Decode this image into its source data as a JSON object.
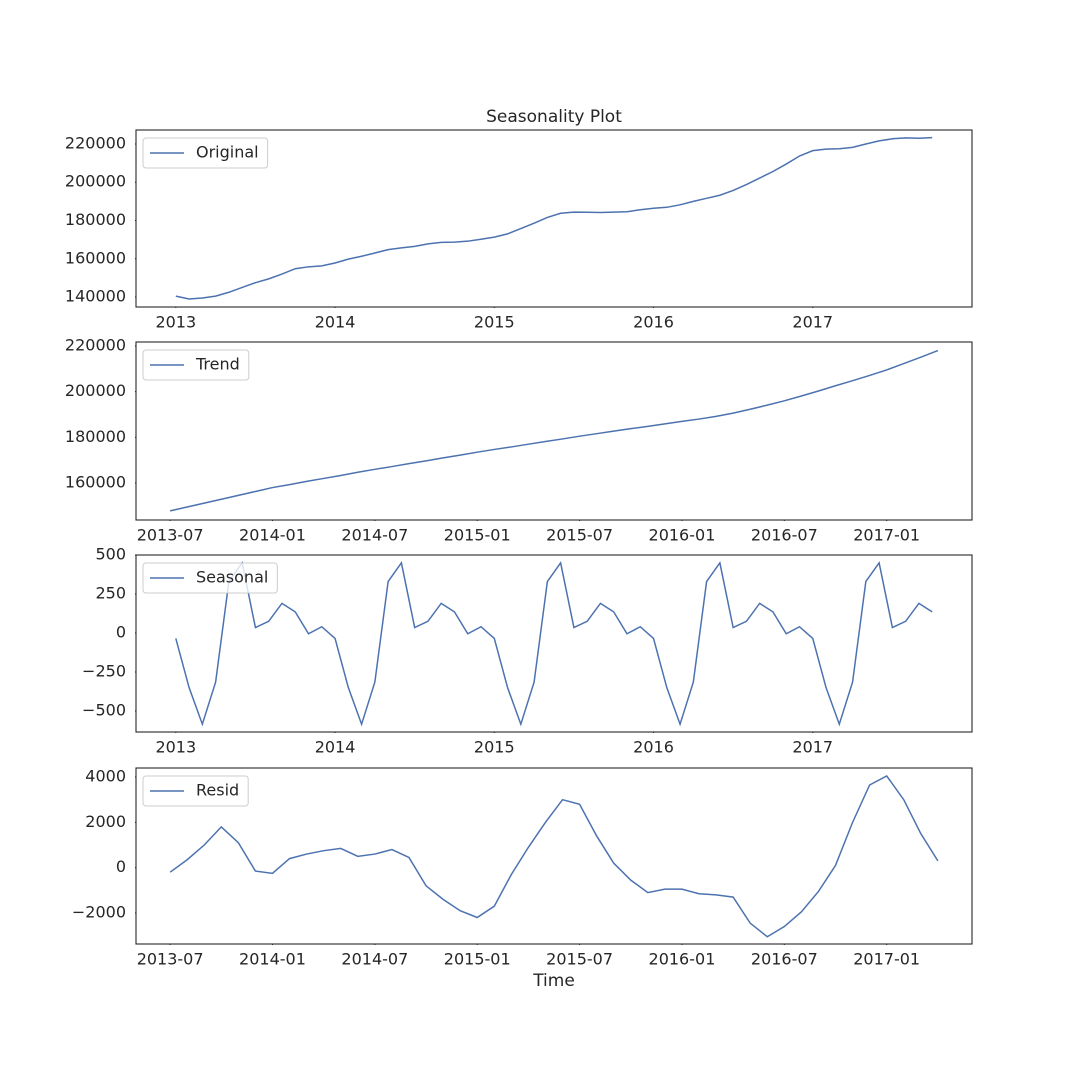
{
  "chart_data": [
    {
      "type": "line",
      "title": "Seasonality Plot",
      "legend": "upper left",
      "x": [
        "2013-01",
        "2013-02",
        "2013-03",
        "2013-04",
        "2013-05",
        "2013-06",
        "2013-07",
        "2013-08",
        "2013-09",
        "2013-10",
        "2013-11",
        "2013-12",
        "2014-01",
        "2014-02",
        "2014-03",
        "2014-04",
        "2014-05",
        "2014-06",
        "2014-07",
        "2014-08",
        "2014-09",
        "2014-10",
        "2014-11",
        "2014-12",
        "2015-01",
        "2015-02",
        "2015-03",
        "2015-04",
        "2015-05",
        "2015-06",
        "2015-07",
        "2015-08",
        "2015-09",
        "2015-10",
        "2015-11",
        "2015-12",
        "2016-01",
        "2016-02",
        "2016-03",
        "2016-04",
        "2016-05",
        "2016-06",
        "2016-07",
        "2016-08",
        "2016-09",
        "2016-10",
        "2016-11",
        "2016-12",
        "2017-01",
        "2017-02",
        "2017-03",
        "2017-04",
        "2017-05",
        "2017-06",
        "2017-07",
        "2017-08",
        "2017-09",
        "2017-10"
      ],
      "series": [
        {
          "name": "Original",
          "color": "#4c72b0",
          "values": [
            140500,
            139000,
            139500,
            140500,
            142500,
            145000,
            147500,
            149500,
            152000,
            154800,
            155800,
            156300,
            157800,
            159800,
            161300,
            163000,
            164800,
            165700,
            166500,
            167800,
            168600,
            168700,
            169200,
            170200,
            171300,
            173000,
            175800,
            178600,
            181600,
            183800,
            184400,
            184300,
            184200,
            184400,
            184600,
            185600,
            186400,
            186900,
            188200,
            190000,
            191600,
            193200,
            195700,
            198800,
            202200,
            205600,
            209500,
            213700,
            216500,
            217300,
            217500,
            218200,
            220000,
            221600,
            222700,
            223200,
            223000,
            223300
          ]
        }
      ],
      "xlim": [
        "2012-10",
        "2018-01"
      ],
      "xticks": [
        {
          "value": "2013-01",
          "label": "2013"
        },
        {
          "value": "2014-01",
          "label": "2014"
        },
        {
          "value": "2015-01",
          "label": "2015"
        },
        {
          "value": "2016-01",
          "label": "2016"
        },
        {
          "value": "2017-01",
          "label": "2017"
        }
      ],
      "ylim": [
        134800,
        227300
      ],
      "yticks": [
        140000,
        160000,
        180000,
        200000,
        220000
      ]
    },
    {
      "type": "line",
      "legend": "upper left",
      "x": [
        "2013-07",
        "2013-08",
        "2013-09",
        "2013-10",
        "2013-11",
        "2013-12",
        "2014-01",
        "2014-02",
        "2014-03",
        "2014-04",
        "2014-05",
        "2014-06",
        "2014-07",
        "2014-08",
        "2014-09",
        "2014-10",
        "2014-11",
        "2014-12",
        "2015-01",
        "2015-02",
        "2015-03",
        "2015-04",
        "2015-05",
        "2015-06",
        "2015-07",
        "2015-08",
        "2015-09",
        "2015-10",
        "2015-11",
        "2015-12",
        "2016-01",
        "2016-02",
        "2016-03",
        "2016-04",
        "2016-05",
        "2016-06",
        "2016-07",
        "2016-08",
        "2016-09",
        "2016-10",
        "2016-11",
        "2016-12",
        "2017-01",
        "2017-02",
        "2017-03",
        "2017-04"
      ],
      "series": [
        {
          "name": "Trend",
          "color": "#4c72b0",
          "values": [
            147800,
            149500,
            151200,
            152900,
            154600,
            156300,
            158000,
            159300,
            160700,
            162000,
            163300,
            164700,
            166000,
            167200,
            168500,
            169700,
            171000,
            172200,
            173500,
            174700,
            175800,
            177000,
            178200,
            179300,
            180500,
            181600,
            182700,
            183800,
            184800,
            185900,
            187000,
            188000,
            189200,
            190600,
            192300,
            194100,
            196000,
            198100,
            200300,
            202600,
            204800,
            207100,
            209500,
            212300,
            215100,
            218000
          ]
        }
      ],
      "xlim": [
        "2013-05",
        "2017-06"
      ],
      "xticks": [
        "2013-07",
        "2014-01",
        "2014-07",
        "2015-01",
        "2015-07",
        "2016-01",
        "2016-07",
        "2017-01"
      ],
      "ylim": [
        143800,
        221750
      ],
      "yticks": [
        160000,
        180000,
        200000,
        220000
      ]
    },
    {
      "type": "line",
      "legend": "upper left",
      "x": [
        "2013-01",
        "2013-02",
        "2013-03",
        "2013-04",
        "2013-05",
        "2013-06",
        "2013-07",
        "2013-08",
        "2013-09",
        "2013-10",
        "2013-11",
        "2013-12",
        "2014-01",
        "2014-02",
        "2014-03",
        "2014-04",
        "2014-05",
        "2014-06",
        "2014-07",
        "2014-08",
        "2014-09",
        "2014-10",
        "2014-11",
        "2014-12",
        "2015-01",
        "2015-02",
        "2015-03",
        "2015-04",
        "2015-05",
        "2015-06",
        "2015-07",
        "2015-08",
        "2015-09",
        "2015-10",
        "2015-11",
        "2015-12",
        "2016-01",
        "2016-02",
        "2016-03",
        "2016-04",
        "2016-05",
        "2016-06",
        "2016-07",
        "2016-08",
        "2016-09",
        "2016-10",
        "2016-11",
        "2016-12",
        "2017-01",
        "2017-02",
        "2017-03",
        "2017-04",
        "2017-05",
        "2017-06",
        "2017-07",
        "2017-08",
        "2017-09",
        "2017-10"
      ],
      "series": [
        {
          "name": "Seasonal",
          "color": "#4c72b0",
          "values": [
            -35,
            -350,
            -585,
            -315,
            330,
            450,
            35,
            75,
            190,
            135,
            -5,
            40,
            -35,
            -350,
            -585,
            -315,
            330,
            450,
            35,
            75,
            190,
            135,
            -5,
            40,
            -35,
            -350,
            -585,
            -315,
            330,
            450,
            35,
            75,
            190,
            135,
            -5,
            40,
            -35,
            -350,
            -585,
            -315,
            330,
            450,
            35,
            75,
            190,
            135,
            -5,
            40,
            -35,
            -350,
            -585,
            -315,
            330,
            450,
            35,
            75,
            190,
            135
          ]
        }
      ],
      "xlim": [
        "2012-10",
        "2018-01"
      ],
      "xticks": [
        {
          "value": "2013-01",
          "label": "2013"
        },
        {
          "value": "2014-01",
          "label": "2014"
        },
        {
          "value": "2015-01",
          "label": "2015"
        },
        {
          "value": "2016-01",
          "label": "2016"
        },
        {
          "value": "2017-01",
          "label": "2017"
        }
      ],
      "ylim": [
        -635,
        500
      ],
      "yticks": [
        {
          "value": -500,
          "label": "−500"
        },
        {
          "value": -250,
          "label": "−250"
        },
        0,
        250,
        500
      ]
    },
    {
      "type": "line",
      "legend": "upper left",
      "xlabel": "Time",
      "x": [
        "2013-07",
        "2013-08",
        "2013-09",
        "2013-10",
        "2013-11",
        "2013-12",
        "2014-01",
        "2014-02",
        "2014-03",
        "2014-04",
        "2014-05",
        "2014-06",
        "2014-07",
        "2014-08",
        "2014-09",
        "2014-10",
        "2014-11",
        "2014-12",
        "2015-01",
        "2015-02",
        "2015-03",
        "2015-04",
        "2015-05",
        "2015-06",
        "2015-07",
        "2015-08",
        "2015-09",
        "2015-10",
        "2015-11",
        "2015-12",
        "2016-01",
        "2016-02",
        "2016-03",
        "2016-04",
        "2016-05",
        "2016-06",
        "2016-07",
        "2016-08",
        "2016-09",
        "2016-10",
        "2016-11",
        "2016-12",
        "2017-01",
        "2017-02",
        "2017-03",
        "2017-04"
      ],
      "series": [
        {
          "name": "Resid",
          "color": "#4c72b0",
          "values": [
            -200,
            350,
            1000,
            1800,
            1100,
            -150,
            -250,
            400,
            600,
            750,
            850,
            500,
            600,
            800,
            450,
            -800,
            -1400,
            -1900,
            -2200,
            -1700,
            -300,
            900,
            2000,
            3000,
            2800,
            1400,
            200,
            -550,
            -1100,
            -950,
            -950,
            -1150,
            -1200,
            -1300,
            -2450,
            -3050,
            -2600,
            -1950,
            -1050,
            100,
            2000,
            3650,
            4050,
            3000,
            1500,
            300
          ]
        }
      ],
      "xlim": [
        "2013-05",
        "2017-06"
      ],
      "xticks": [
        "2013-07",
        "2014-01",
        "2014-07",
        "2015-01",
        "2015-07",
        "2016-01",
        "2016-07",
        "2017-01"
      ],
      "ylim": [
        -3370,
        4400
      ],
      "yticks": [
        {
          "value": -2000,
          "label": "−2000"
        },
        0,
        2000,
        4000
      ]
    }
  ]
}
